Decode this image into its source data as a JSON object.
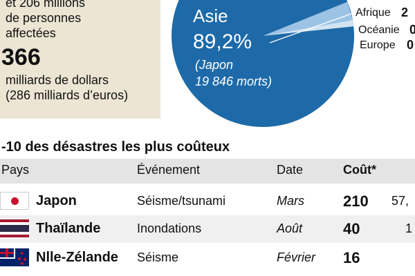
{
  "summary": {
    "line1": "et 206 millions",
    "line2": "de personnes",
    "line3": "affectées",
    "cost_value": "366",
    "cost_unit": "milliards de dollars",
    "cost_eur": "(286 milliards d’euros)"
  },
  "chart_data": {
    "type": "pie",
    "slices": [
      {
        "label": "Asie",
        "value": 89.2,
        "value_text": "89,2%",
        "note1": "(Japon",
        "note2": "19 846 morts)",
        "color": "#1e6aa8"
      },
      {
        "label": "Afrique",
        "value_text": "2",
        "color": "#9cc3e4"
      },
      {
        "label": "Océanie",
        "value_text": "0",
        "color": "#d2e4f2"
      },
      {
        "label": "Europe",
        "value_text": "0",
        "color": "#e8f0f8"
      }
    ]
  },
  "table": {
    "title": "-10 des désastres les plus coûteux",
    "headers": {
      "pays": "Pays",
      "evenement": "Événement",
      "date": "Date",
      "cout": "Coût*"
    },
    "rows": [
      {
        "country": "Japon",
        "event": "Séisme/tsunami",
        "date": "Mars",
        "cost": "210",
        "extra": "57,",
        "flag": "japan-flag"
      },
      {
        "country": "Thaïlande",
        "event": "Inondations",
        "date": "Août",
        "cost": "40",
        "extra": "1",
        "flag": "thailand-flag"
      },
      {
        "country": "Nlle-Zélande",
        "event": "Séisme",
        "date": "Février",
        "cost": "16",
        "extra": "",
        "flag": "new-zealand-flag"
      }
    ]
  },
  "colors": {
    "accent": "#1e6aa8",
    "panel": "#ece5d4",
    "header_band": "#e4e4e4",
    "row_alt": "#f0f0f0"
  }
}
